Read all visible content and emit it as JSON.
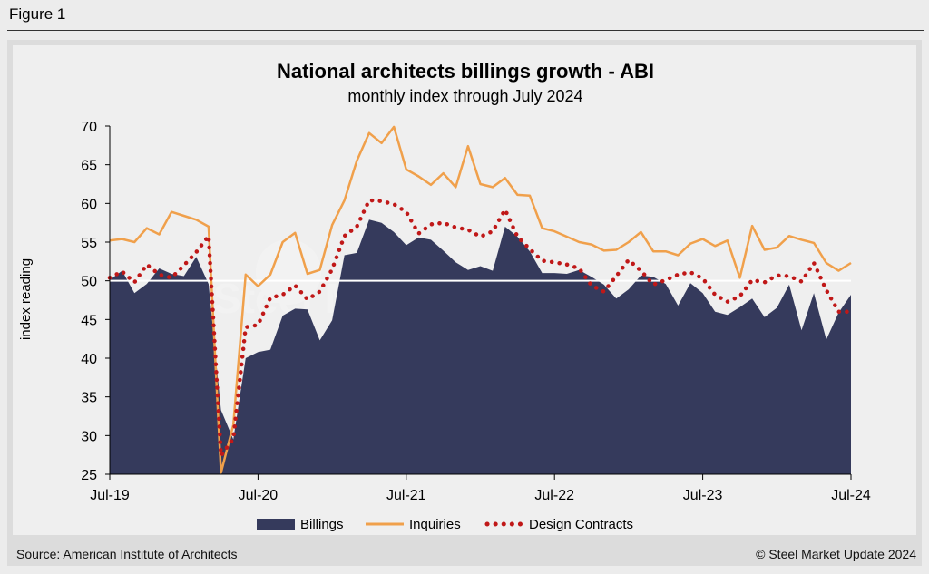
{
  "figure_label": "Figure 1",
  "source": "Source: American Institute of Architects",
  "copyright": "© Steel Market Update 2024",
  "watermark": "Steel Market Update",
  "colors": {
    "billings": "#353a5c",
    "inquiries": "#f0a04b",
    "design_contracts": "#c01818",
    "baseline": "#ffffff"
  },
  "chart_data": {
    "type": "area",
    "title": "National architects billings growth - ABI",
    "subtitle": "monthly index through July 2024",
    "ylabel": "index reading",
    "xlabel": "",
    "ylim": [
      25,
      70
    ],
    "yticks": [
      25,
      30,
      35,
      40,
      45,
      50,
      55,
      60,
      65,
      70
    ],
    "xtick_labels": [
      "Jul-19",
      "Jul-20",
      "Jul-21",
      "Jul-22",
      "Jul-23",
      "Jul-24"
    ],
    "x": [
      "Jul-19",
      "Aug-19",
      "Sep-19",
      "Oct-19",
      "Nov-19",
      "Dec-19",
      "Jan-20",
      "Feb-20",
      "Mar-20",
      "Apr-20",
      "May-20",
      "Jun-20",
      "Jul-20",
      "Aug-20",
      "Sep-20",
      "Oct-20",
      "Nov-20",
      "Dec-20",
      "Jan-21",
      "Feb-21",
      "Mar-21",
      "Apr-21",
      "May-21",
      "Jun-21",
      "Jul-21",
      "Aug-21",
      "Sep-21",
      "Oct-21",
      "Nov-21",
      "Dec-21",
      "Jan-22",
      "Feb-22",
      "Mar-22",
      "Apr-22",
      "May-22",
      "Jun-22",
      "Jul-22",
      "Aug-22",
      "Sep-22",
      "Oct-22",
      "Nov-22",
      "Dec-22",
      "Jan-23",
      "Feb-23",
      "Mar-23",
      "Apr-23",
      "May-23",
      "Jun-23",
      "Jul-23",
      "Aug-23",
      "Sep-23",
      "Oct-23",
      "Nov-23",
      "Dec-23",
      "Jan-24",
      "Feb-24",
      "Mar-24",
      "Apr-24",
      "May-24",
      "Jun-24",
      "Jul-24"
    ],
    "reference_line": 50,
    "legend_position": "bottom",
    "grid": false,
    "series": [
      {
        "name": "Billings",
        "type": "area",
        "values": [
          50.1,
          51.3,
          48.4,
          49.6,
          51.6,
          50.9,
          50.6,
          53.1,
          49.6,
          33.3,
          29.5,
          40.0,
          40.8,
          41.1,
          45.5,
          46.4,
          46.3,
          42.3,
          44.9,
          53.3,
          53.6,
          57.9,
          57.5,
          56.3,
          54.6,
          55.6,
          55.3,
          53.9,
          52.4,
          51.4,
          51.9,
          51.3,
          57.0,
          55.7,
          53.8,
          51.0,
          51.0,
          50.9,
          51.4,
          50.5,
          49.5,
          47.7,
          48.9,
          50.7,
          50.5,
          49.6,
          46.8,
          49.7,
          48.4,
          46.0,
          45.6,
          46.6,
          47.7,
          45.3,
          46.5,
          49.5,
          43.6,
          48.4,
          42.4,
          45.9,
          48.2
        ]
      },
      {
        "name": "Inquiries",
        "type": "line",
        "values": [
          55.2,
          55.4,
          55.0,
          56.8,
          56.0,
          58.9,
          58.4,
          57.9,
          57.0,
          25.2,
          31.4,
          50.8,
          49.3,
          50.8,
          55.0,
          56.2,
          50.9,
          51.4,
          57.2,
          60.4,
          65.5,
          69.1,
          67.8,
          69.9,
          64.4,
          63.5,
          62.4,
          63.9,
          62.1,
          67.4,
          62.5,
          62.1,
          63.3,
          61.1,
          61.0,
          56.8,
          56.4,
          55.7,
          55.0,
          54.7,
          53.9,
          54.0,
          55.0,
          56.3,
          53.8,
          53.8,
          53.3,
          54.8,
          55.4,
          54.5,
          55.2,
          50.4,
          57.1,
          54.0,
          54.3,
          55.8,
          55.3,
          54.9,
          52.3,
          51.3,
          52.3
        ]
      },
      {
        "name": "Design Contracts",
        "type": "line",
        "values": [
          50.4,
          51.2,
          49.8,
          52.1,
          50.8,
          50.4,
          52.0,
          53.7,
          55.8,
          27.4,
          29.6,
          44.0,
          44.3,
          47.8,
          48.2,
          49.4,
          47.6,
          48.6,
          51.5,
          55.8,
          57.0,
          60.4,
          60.3,
          59.9,
          58.9,
          56.1,
          57.3,
          57.5,
          56.9,
          56.6,
          55.7,
          56.4,
          59.2,
          55.7,
          54.1,
          52.6,
          52.4,
          52.1,
          51.6,
          49.4,
          48.6,
          50.6,
          52.7,
          51.3,
          49.5,
          50.1,
          50.8,
          51.1,
          50.3,
          48.2,
          47.3,
          48.0,
          50.1,
          49.8,
          50.7,
          50.6,
          49.9,
          52.3,
          48.8,
          46.0,
          46.0
        ]
      }
    ]
  }
}
